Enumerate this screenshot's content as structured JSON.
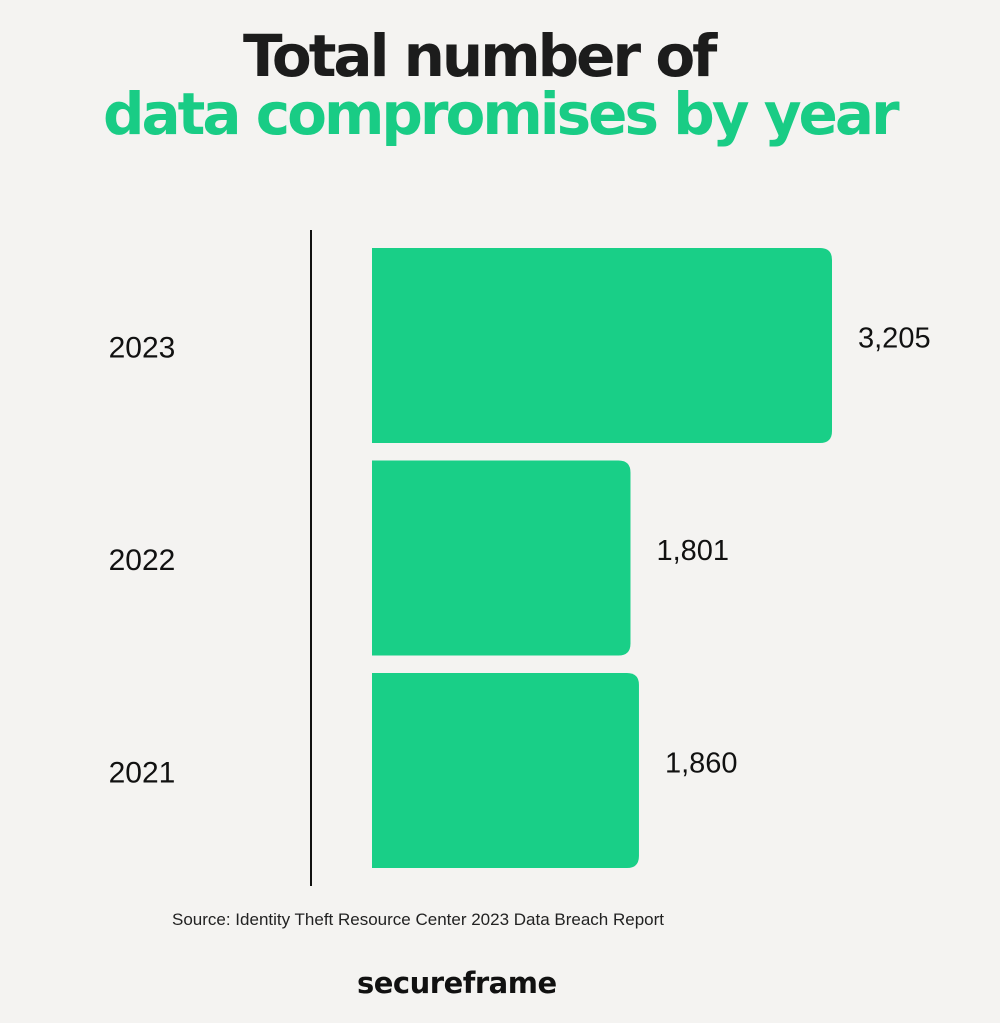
{
  "title": {
    "line1": "Total number of",
    "line2": "data compromises by year"
  },
  "colors": {
    "bar": "#19cf87",
    "accent": "#19cc85",
    "text": "#1c1c1c",
    "background": "#f4f3f1"
  },
  "chart_data": {
    "type": "bar",
    "orientation": "horizontal",
    "categories": [
      "2023",
      "2022",
      "2021"
    ],
    "values": [
      3205,
      1801,
      1860
    ],
    "data_labels": [
      "3,205",
      "1,801",
      "1,860"
    ],
    "title": "Total number of data compromises by year",
    "xlabel": "",
    "ylabel": "",
    "xlim": [
      0,
      3205
    ],
    "grid": false,
    "legend": "none"
  },
  "source": "Source: Identity Theft Resource Center  2023 Data Breach Report",
  "logo": "secureframe"
}
